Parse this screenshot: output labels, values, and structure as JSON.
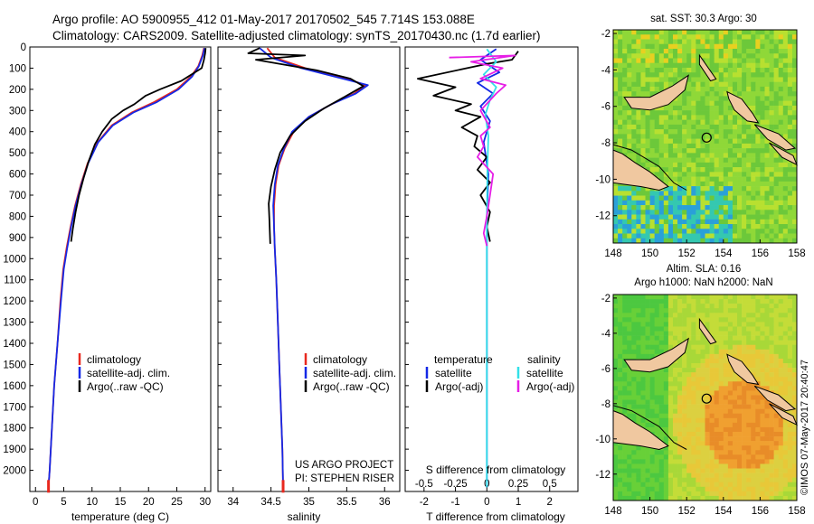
{
  "header": {
    "line1": "Argo profile: AO 5900955_412 01-May-2017 20170502_545 7.714S 153.088E",
    "line2": "Climatology: CARS2009. Satellite-adjusted climatology: synTS_20170430.nc (1.7d earlier)"
  },
  "colors": {
    "climatology": "#e8281e",
    "satellite": "#1428e6",
    "argo": "#000000",
    "sat_salinity": "#33e0e8",
    "argo_salinity_adj": "#e61ee6"
  },
  "project_text": [
    "US ARGO PROJECT",
    "PI: STEPHEN RISER"
  ],
  "stamp": "©IMOS 07-May-2017 20:40:47",
  "chart_data": [
    {
      "type": "line",
      "id": "temperature-profile",
      "xlabel": "temperature (deg C)",
      "ylabel": "",
      "xlim": [
        -1,
        31
      ],
      "ylim": [
        2100,
        0
      ],
      "xticks": [
        0,
        5,
        10,
        15,
        20,
        25,
        30
      ],
      "yticks": [
        0,
        100,
        200,
        300,
        400,
        500,
        600,
        700,
        800,
        900,
        1000,
        1100,
        1200,
        1300,
        1400,
        1500,
        1600,
        1700,
        1800,
        1900,
        2000
      ],
      "legend": [
        "climatology",
        "satellite-adj. clim.",
        "Argo(..raw -QC)"
      ],
      "series": [
        {
          "name": "climatology",
          "color": "#e8281e",
          "points": [
            [
              29.8,
              5
            ],
            [
              29.5,
              40
            ],
            [
              28.8,
              90
            ],
            [
              27.5,
              140
            ],
            [
              25,
              200
            ],
            [
              21,
              260
            ],
            [
              17,
              310
            ],
            [
              13.5,
              370
            ],
            [
              11,
              450
            ],
            [
              9.2,
              550
            ],
            [
              8,
              650
            ],
            [
              7,
              750
            ],
            [
              6.2,
              850
            ],
            [
              5.5,
              950
            ],
            [
              4.9,
              1050
            ],
            [
              4.4,
              1200
            ],
            [
              3.9,
              1400
            ],
            [
              3.3,
              1600
            ],
            [
              2.9,
              1800
            ],
            [
              2.5,
              2000
            ],
            [
              2.3,
              2080
            ]
          ]
        },
        {
          "name": "satellite-adj. clim.",
          "color": "#1428e6",
          "points": [
            [
              29.9,
              5
            ],
            [
              29.6,
              40
            ],
            [
              28.9,
              90
            ],
            [
              27.7,
              140
            ],
            [
              25.3,
              200
            ],
            [
              21.5,
              260
            ],
            [
              17.3,
              310
            ],
            [
              13.7,
              370
            ],
            [
              11.1,
              450
            ],
            [
              9.3,
              550
            ],
            [
              8.1,
              650
            ],
            [
              7.1,
              750
            ],
            [
              6.3,
              850
            ],
            [
              5.6,
              950
            ],
            [
              5,
              1050
            ],
            [
              4.5,
              1200
            ],
            [
              3.9,
              1400
            ],
            [
              3.3,
              1600
            ],
            [
              2.9,
              1800
            ],
            [
              2.5,
              2000
            ],
            [
              2.3,
              2080
            ]
          ]
        },
        {
          "name": "Argo(..raw -QC)",
          "color": "#000000",
          "points": [
            [
              30.1,
              5
            ],
            [
              30,
              30
            ],
            [
              29.8,
              60
            ],
            [
              29.4,
              100
            ],
            [
              27,
              140
            ],
            [
              25.8,
              160
            ],
            [
              22,
              200
            ],
            [
              19.5,
              230
            ],
            [
              17.5,
              270
            ],
            [
              15.5,
              300
            ],
            [
              13.5,
              340
            ],
            [
              11.8,
              400
            ],
            [
              10.5,
              460
            ],
            [
              9.4,
              540
            ],
            [
              8.5,
              620
            ],
            [
              7.7,
              700
            ],
            [
              7.1,
              780
            ],
            [
              6.6,
              860
            ],
            [
              6.3,
              920
            ]
          ]
        }
      ]
    },
    {
      "type": "line",
      "id": "salinity-profile",
      "xlabel": "salinity",
      "ylabel": "",
      "xlim": [
        33.8,
        36.2
      ],
      "ylim": [
        2100,
        0
      ],
      "xticks": [
        34,
        34.5,
        35,
        35.5,
        36
      ],
      "legend": [
        "climatology",
        "satellite-adj. clim.",
        "Argo(..raw -QC)"
      ],
      "series": [
        {
          "name": "climatology",
          "color": "#e8281e",
          "points": [
            [
              34.45,
              5
            ],
            [
              34.55,
              50
            ],
            [
              34.95,
              100
            ],
            [
              35.5,
              150
            ],
            [
              35.75,
              180
            ],
            [
              35.6,
              220
            ],
            [
              35.3,
              270
            ],
            [
              35,
              330
            ],
            [
              34.8,
              400
            ],
            [
              34.68,
              480
            ],
            [
              34.6,
              560
            ],
            [
              34.56,
              650
            ],
            [
              34.54,
              750
            ],
            [
              34.54,
              850
            ],
            [
              34.55,
              950
            ],
            [
              34.57,
              1100
            ],
            [
              34.59,
              1300
            ],
            [
              34.61,
              1500
            ],
            [
              34.63,
              1700
            ],
            [
              34.65,
              1900
            ],
            [
              34.66,
              2080
            ]
          ]
        },
        {
          "name": "satellite-adj. clim.",
          "color": "#1428e6",
          "points": [
            [
              34.35,
              5
            ],
            [
              34.5,
              50
            ],
            [
              34.9,
              100
            ],
            [
              35.45,
              150
            ],
            [
              35.78,
              180
            ],
            [
              35.62,
              220
            ],
            [
              35.3,
              270
            ],
            [
              35,
              330
            ],
            [
              34.78,
              400
            ],
            [
              34.67,
              480
            ],
            [
              34.59,
              560
            ],
            [
              34.55,
              650
            ],
            [
              34.53,
              750
            ],
            [
              34.54,
              850
            ],
            [
              34.55,
              950
            ],
            [
              34.57,
              1100
            ],
            [
              34.59,
              1300
            ],
            [
              34.61,
              1500
            ],
            [
              34.63,
              1700
            ],
            [
              34.65,
              1900
            ],
            [
              34.66,
              2080
            ]
          ]
        },
        {
          "name": "Argo(..raw -QC)",
          "color": "#000000",
          "points": [
            [
              34.35,
              5
            ],
            [
              34.2,
              30
            ],
            [
              34.95,
              40
            ],
            [
              34.3,
              60
            ],
            [
              35.1,
              110
            ],
            [
              35.55,
              150
            ],
            [
              35.72,
              185
            ],
            [
              35.45,
              240
            ],
            [
              35.2,
              290
            ],
            [
              34.95,
              350
            ],
            [
              34.75,
              420
            ],
            [
              34.62,
              500
            ],
            [
              34.55,
              580
            ],
            [
              34.5,
              660
            ],
            [
              34.47,
              740
            ],
            [
              34.48,
              820
            ],
            [
              34.49,
              930
            ]
          ]
        }
      ]
    },
    {
      "type": "line",
      "id": "difference-profile",
      "xlabel": "T difference from climatology",
      "x2label": "S difference from climatology",
      "xlim": [
        -2.6,
        2.9
      ],
      "ylim": [
        2100,
        0
      ],
      "xticks": [
        -2,
        -1,
        0,
        1,
        2
      ],
      "x2ticks": [
        "-0.5",
        "-0.25",
        "0",
        "0.25",
        "0.5"
      ],
      "legend_temperature_title": "temperature",
      "legend_salinity_title": "salinity",
      "legend_temperature": [
        "satellite",
        "Argo(-adj)"
      ],
      "legend_salinity": [
        "satellite",
        "Argo(-adj)"
      ],
      "series": [
        {
          "name": "satellite",
          "group": "temperature",
          "color": "#1428e6",
          "points": [
            [
              0.3,
              10
            ],
            [
              -0.2,
              60
            ],
            [
              0.4,
              120
            ],
            [
              -0.3,
              170
            ],
            [
              0.2,
              220
            ],
            [
              -0.2,
              280
            ],
            [
              0.1,
              350
            ],
            [
              -0.1,
              450
            ],
            [
              0.05,
              600
            ],
            [
              0,
              800
            ],
            [
              0,
              1200
            ],
            [
              0,
              1600
            ],
            [
              0,
              2080
            ]
          ]
        },
        {
          "name": "Argo(-adj)",
          "group": "temperature",
          "color": "#000000",
          "points": [
            [
              1,
              20
            ],
            [
              0.8,
              60
            ],
            [
              0,
              80
            ],
            [
              -2.2,
              150
            ],
            [
              -1,
              190
            ],
            [
              -1.7,
              230
            ],
            [
              -0.5,
              270
            ],
            [
              -1,
              300
            ],
            [
              -0.2,
              330
            ],
            [
              -0.8,
              380
            ],
            [
              -0.3,
              420
            ],
            [
              -0.4,
              470
            ],
            [
              0,
              520
            ],
            [
              -0.3,
              580
            ],
            [
              0.1,
              640
            ],
            [
              -0.2,
              700
            ],
            [
              0.1,
              780
            ],
            [
              0,
              850
            ],
            [
              0.1,
              920
            ]
          ]
        },
        {
          "name": "satellite",
          "group": "salinity",
          "color": "#33e0e8",
          "points": [
            [
              0,
              10
            ],
            [
              0.3,
              70
            ],
            [
              -0.1,
              130
            ],
            [
              0.3,
              190
            ],
            [
              0.1,
              250
            ],
            [
              -0.05,
              320
            ],
            [
              0.05,
              420
            ],
            [
              0.02,
              550
            ],
            [
              0,
              800
            ],
            [
              0,
              1200
            ],
            [
              0,
              1600
            ],
            [
              0,
              2080
            ]
          ]
        },
        {
          "name": "Argo(-adj)",
          "group": "salinity",
          "color": "#e61ee6",
          "points": [
            [
              -1.2,
              50
            ],
            [
              0.9,
              40
            ],
            [
              -0.5,
              70
            ],
            [
              0.5,
              100
            ],
            [
              -0.2,
              150
            ],
            [
              0.6,
              180
            ],
            [
              0.3,
              220
            ],
            [
              -0.2,
              300
            ],
            [
              0.1,
              380
            ],
            [
              -0.2,
              420
            ],
            [
              -0.1,
              470
            ],
            [
              -0.3,
              520
            ],
            [
              0.2,
              600
            ],
            [
              0.1,
              700
            ],
            [
              0,
              800
            ],
            [
              -0.1,
              880
            ],
            [
              0,
              940
            ]
          ]
        }
      ]
    },
    {
      "type": "heatmap",
      "id": "sst-map",
      "title": "sat. SST: 30.3 Argo: 30",
      "xlim": [
        148,
        158
      ],
      "ylim": [
        -13.5,
        -1.8
      ],
      "xticks": [
        148,
        150,
        152,
        154,
        156,
        158
      ],
      "yticks": [
        -2,
        -4,
        -6,
        -8,
        -10,
        -12
      ],
      "marker": [
        153.088,
        -7.714
      ]
    },
    {
      "type": "heatmap",
      "id": "sla-map",
      "title": "Altim. SLA: 0.16",
      "subtitle": "Argo h1000: NaN h2000: NaN",
      "xlim": [
        148,
        158
      ],
      "ylim": [
        -13.5,
        -1.8
      ],
      "xticks": [
        148,
        150,
        152,
        154,
        156,
        158
      ],
      "yticks": [
        -2,
        -4,
        -6,
        -8,
        -10,
        -12
      ],
      "marker": [
        153.088,
        -7.714
      ]
    }
  ]
}
